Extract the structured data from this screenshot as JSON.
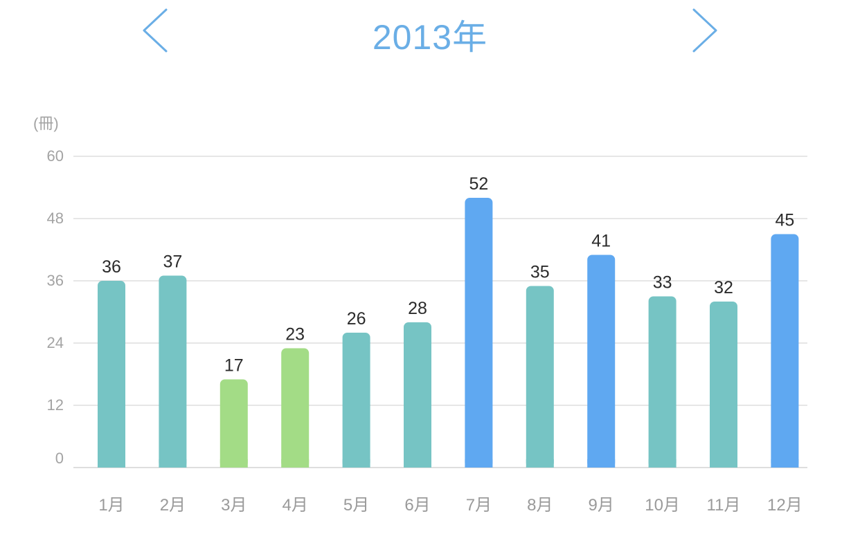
{
  "header": {
    "title": "2013年",
    "prev_icon": "chevron-left-icon",
    "next_icon": "chevron-right-icon",
    "accent_color": "#6aaee6"
  },
  "chart_data": {
    "type": "bar",
    "unit_label": "(冊)",
    "categories": [
      "1月",
      "2月",
      "3月",
      "4月",
      "5月",
      "6月",
      "7月",
      "8月",
      "9月",
      "10月",
      "11月",
      "12月"
    ],
    "values": [
      36,
      37,
      17,
      23,
      26,
      28,
      52,
      35,
      41,
      33,
      32,
      45
    ],
    "colors": [
      "#76c4c4",
      "#76c4c4",
      "#a3dc86",
      "#a3dc86",
      "#76c4c4",
      "#76c4c4",
      "#5fa8f1",
      "#76c4c4",
      "#5fa8f1",
      "#76c4c4",
      "#76c4c4",
      "#5fa8f1"
    ],
    "yticks": [
      0,
      12,
      24,
      36,
      48,
      60
    ],
    "ylim": [
      0,
      60
    ],
    "grid": true,
    "data_labels": true
  }
}
